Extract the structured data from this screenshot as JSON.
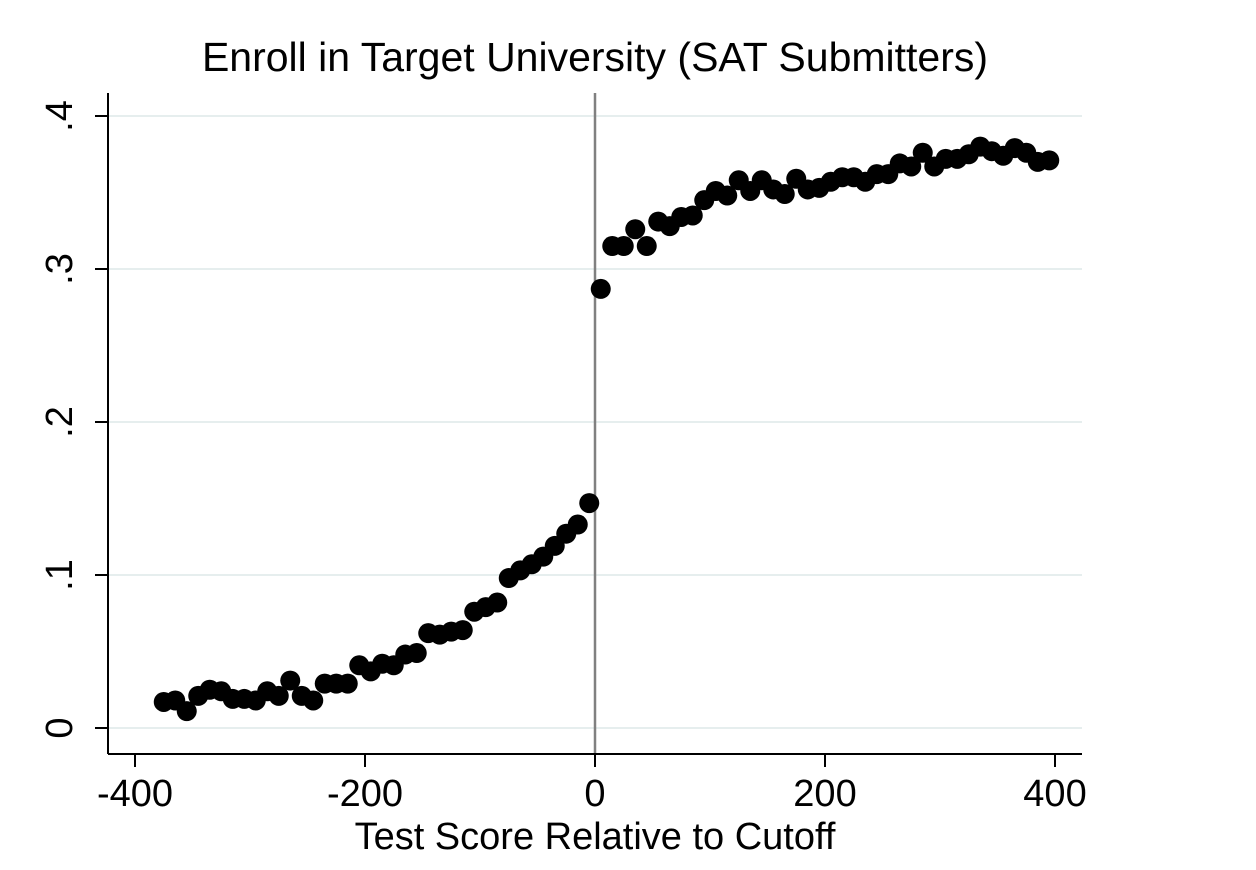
{
  "chart_data": {
    "type": "scatter",
    "title": "Enroll in Target University (SAT Submitters)",
    "xlabel": "Test Score Relative to Cutoff",
    "ylabel": "",
    "xlim": [
      -420,
      420
    ],
    "ylim": [
      -0.016,
      0.41
    ],
    "x_ticks": [
      -400,
      -200,
      0,
      200,
      400
    ],
    "x_tick_labels": [
      "-400",
      "-200",
      "0",
      "200",
      "400"
    ],
    "y_ticks": [
      0,
      0.1,
      0.2,
      0.3,
      0.4
    ],
    "y_tick_labels": [
      "0",
      ".1",
      ".2",
      ".3",
      ".4"
    ],
    "grid": "horizontal",
    "reference_line": {
      "axis": "x",
      "value": 0
    },
    "colors": {
      "points": "#000000",
      "grid": "#e6eeee",
      "reference_line": "#808080",
      "axis": "#000000"
    },
    "points": [
      {
        "x": -375,
        "y": 0.017
      },
      {
        "x": -365,
        "y": 0.018
      },
      {
        "x": -355,
        "y": 0.011
      },
      {
        "x": -345,
        "y": 0.021
      },
      {
        "x": -335,
        "y": 0.025
      },
      {
        "x": -325,
        "y": 0.024
      },
      {
        "x": -315,
        "y": 0.019
      },
      {
        "x": -305,
        "y": 0.019
      },
      {
        "x": -295,
        "y": 0.018
      },
      {
        "x": -285,
        "y": 0.024
      },
      {
        "x": -275,
        "y": 0.021
      },
      {
        "x": -265,
        "y": 0.031
      },
      {
        "x": -255,
        "y": 0.021
      },
      {
        "x": -245,
        "y": 0.018
      },
      {
        "x": -235,
        "y": 0.029
      },
      {
        "x": -225,
        "y": 0.029
      },
      {
        "x": -215,
        "y": 0.029
      },
      {
        "x": -205,
        "y": 0.041
      },
      {
        "x": -195,
        "y": 0.037
      },
      {
        "x": -185,
        "y": 0.042
      },
      {
        "x": -175,
        "y": 0.041
      },
      {
        "x": -165,
        "y": 0.048
      },
      {
        "x": -155,
        "y": 0.049
      },
      {
        "x": -145,
        "y": 0.062
      },
      {
        "x": -135,
        "y": 0.061
      },
      {
        "x": -125,
        "y": 0.063
      },
      {
        "x": -115,
        "y": 0.064
      },
      {
        "x": -105,
        "y": 0.076
      },
      {
        "x": -95,
        "y": 0.079
      },
      {
        "x": -85,
        "y": 0.082
      },
      {
        "x": -75,
        "y": 0.098
      },
      {
        "x": -65,
        "y": 0.103
      },
      {
        "x": -55,
        "y": 0.107
      },
      {
        "x": -45,
        "y": 0.112
      },
      {
        "x": -35,
        "y": 0.119
      },
      {
        "x": -25,
        "y": 0.127
      },
      {
        "x": -15,
        "y": 0.133
      },
      {
        "x": -5,
        "y": 0.147
      },
      {
        "x": 5,
        "y": 0.287
      },
      {
        "x": 15,
        "y": 0.315
      },
      {
        "x": 25,
        "y": 0.315
      },
      {
        "x": 35,
        "y": 0.326
      },
      {
        "x": 45,
        "y": 0.315
      },
      {
        "x": 55,
        "y": 0.331
      },
      {
        "x": 65,
        "y": 0.328
      },
      {
        "x": 75,
        "y": 0.334
      },
      {
        "x": 85,
        "y": 0.335
      },
      {
        "x": 95,
        "y": 0.345
      },
      {
        "x": 105,
        "y": 0.351
      },
      {
        "x": 115,
        "y": 0.348
      },
      {
        "x": 125,
        "y": 0.358
      },
      {
        "x": 135,
        "y": 0.351
      },
      {
        "x": 145,
        "y": 0.358
      },
      {
        "x": 155,
        "y": 0.352
      },
      {
        "x": 165,
        "y": 0.349
      },
      {
        "x": 175,
        "y": 0.359
      },
      {
        "x": 185,
        "y": 0.352
      },
      {
        "x": 195,
        "y": 0.353
      },
      {
        "x": 205,
        "y": 0.357
      },
      {
        "x": 215,
        "y": 0.36
      },
      {
        "x": 225,
        "y": 0.36
      },
      {
        "x": 235,
        "y": 0.357
      },
      {
        "x": 245,
        "y": 0.362
      },
      {
        "x": 255,
        "y": 0.362
      },
      {
        "x": 265,
        "y": 0.369
      },
      {
        "x": 275,
        "y": 0.367
      },
      {
        "x": 285,
        "y": 0.376
      },
      {
        "x": 295,
        "y": 0.367
      },
      {
        "x": 305,
        "y": 0.372
      },
      {
        "x": 315,
        "y": 0.372
      },
      {
        "x": 325,
        "y": 0.375
      },
      {
        "x": 335,
        "y": 0.38
      },
      {
        "x": 345,
        "y": 0.377
      },
      {
        "x": 355,
        "y": 0.374
      },
      {
        "x": 365,
        "y": 0.379
      },
      {
        "x": 375,
        "y": 0.376
      },
      {
        "x": 385,
        "y": 0.37
      },
      {
        "x": 395,
        "y": 0.371
      }
    ]
  }
}
